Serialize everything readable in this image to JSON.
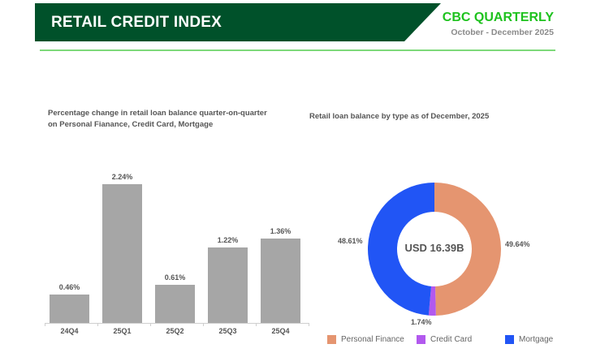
{
  "header": {
    "title": "RETAIL CREDIT INDEX",
    "brand": "CBC QUARTERLY",
    "period": "October - December 2025",
    "colors": {
      "banner": "#00512a",
      "brand": "#1ec21e",
      "rule": "#7dd97a"
    }
  },
  "left_panel": {
    "subtitle_line1": "Percentage change in retail loan balance quarter-on-quarter",
    "subtitle_line2": "on Personal Fianance, Credit Card, Mortgage"
  },
  "right_panel": {
    "subtitle": "Retail loan balance by type as of December, 2025",
    "center_label": "USD 16.39B"
  },
  "chart_data": [
    {
      "type": "bar",
      "title": "Percentage change in retail loan balance quarter-on-quarter on Personal Fianance, Credit Card, Mortgage",
      "categories": [
        "24Q4",
        "25Q1",
        "25Q2",
        "25Q3",
        "25Q4"
      ],
      "values": [
        0.46,
        2.24,
        0.61,
        1.22,
        1.36
      ],
      "value_labels": [
        "0.46%",
        "2.24%",
        "0.61%",
        "1.22%",
        "1.36%"
      ],
      "unit": "%",
      "xlabel": "",
      "ylabel": "",
      "ylim": [
        0,
        2.5
      ],
      "grid": false,
      "color": "#a6a6a6"
    },
    {
      "type": "pie",
      "subtype": "donut",
      "title": "Retail loan balance by type as of December, 2025",
      "center_text": "USD 16.39B",
      "categories": [
        "Personal Finance",
        "Credit Card",
        "Mortgage"
      ],
      "values": [
        49.64,
        1.74,
        48.61
      ],
      "value_labels": [
        "49.64%",
        "1.74%",
        "48.61%"
      ],
      "colors": [
        "#e59570",
        "#b259ee",
        "#2155f5"
      ],
      "legend_position": "bottom"
    }
  ],
  "legend": [
    {
      "label": "Personal Finance",
      "color": "#e59570"
    },
    {
      "label": "Credit Card",
      "color": "#b259ee"
    },
    {
      "label": "Mortgage",
      "color": "#2155f5"
    }
  ]
}
